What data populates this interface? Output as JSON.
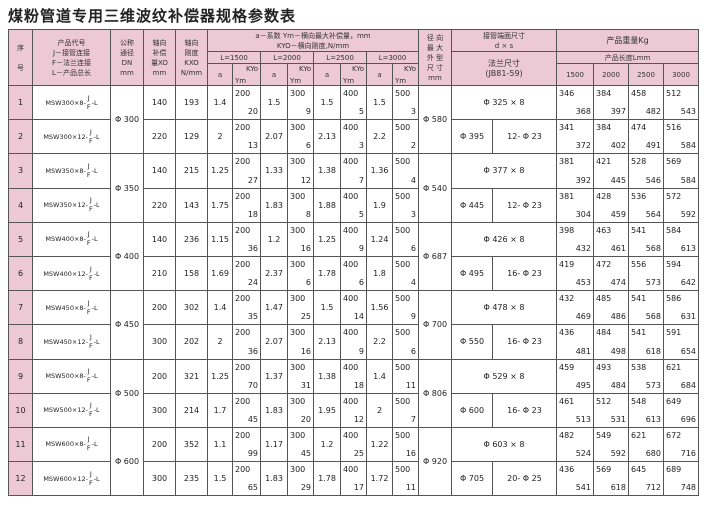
{
  "title": "煤粉管道专用三维波纹补偿器规格参数表",
  "header": {
    "seq": [
      "序",
      "号"
    ],
    "code": [
      "产品代号",
      "J－接管连接",
      "F－法兰连接",
      "L－产品总长"
    ],
    "dn": [
      "公称",
      "通径",
      "DN",
      "mm"
    ],
    "xo": [
      "轴向",
      "补偿",
      "量XO",
      "mm"
    ],
    "kxo": [
      "轴向",
      "刚度",
      "KXO",
      "N/mm"
    ],
    "coef_legend": [
      "a－系数  Ym－横向最大补偿量，mm",
      "KYO－横向刚度,N/mm"
    ],
    "lengths": [
      "L=1500",
      "L=2000",
      "L=2500",
      "L=3000"
    ],
    "a_label": "a",
    "ym_label": "Ym",
    "kyo_label": "KYo",
    "outer": [
      "径 向",
      "最 大",
      "外 型",
      "尺 寸",
      "mm"
    ],
    "pipe_end": [
      "接管端面尺寸",
      "d × s"
    ],
    "flange": [
      "法兰尺寸",
      "(JB81-59)"
    ],
    "weight": "产品重量Kg",
    "product_length": "产品长度Lmm",
    "weight_lengths": [
      "1500",
      "2000",
      "2500",
      "3000"
    ]
  },
  "code_options": [
    "J",
    "F"
  ],
  "code_suffix": "-L",
  "groups": [
    {
      "dn": "Φ 300",
      "outer": "Φ 580"
    },
    {
      "dn": "Φ 350",
      "outer": "Φ 540"
    },
    {
      "dn": "Φ 400",
      "outer": "Φ 687"
    },
    {
      "dn": "Φ 450",
      "outer": "Φ 700"
    },
    {
      "dn": "Φ 500",
      "outer": "Φ 806"
    },
    {
      "dn": "Φ 600",
      "outer": "Φ 920"
    }
  ],
  "rows": [
    {
      "seq": "1",
      "code": "MSW300×8-",
      "xo": "140",
      "kxo": "193",
      "coef": [
        [
          "1.4",
          "200",
          "20"
        ],
        [
          "1.5",
          "300",
          "9"
        ],
        [
          "1.5",
          "400",
          "5"
        ],
        [
          "1.5",
          "500",
          "3"
        ]
      ],
      "pipe": "Φ 325 × 8",
      "weights": [
        [
          "346",
          "368"
        ],
        [
          "384",
          "397"
        ],
        [
          "458",
          "482"
        ],
        [
          "512",
          "543"
        ]
      ]
    },
    {
      "seq": "2",
      "code": "MSW300×12-",
      "xo": "220",
      "kxo": "129",
      "coef": [
        [
          "2",
          "200",
          "13"
        ],
        [
          "2.07",
          "300",
          "6"
        ],
        [
          "2.13",
          "400",
          "3"
        ],
        [
          "2.2",
          "500",
          "2"
        ]
      ],
      "flange": [
        "Φ 395",
        "12- Φ 23"
      ],
      "weights": [
        [
          "341",
          "372"
        ],
        [
          "384",
          "402"
        ],
        [
          "474",
          "491"
        ],
        [
          "516",
          "584"
        ]
      ]
    },
    {
      "seq": "3",
      "code": "MSW350×8-",
      "xo": "140",
      "kxo": "215",
      "coef": [
        [
          "1.25",
          "200",
          "27"
        ],
        [
          "1.33",
          "300",
          "12"
        ],
        [
          "1.38",
          "400",
          "7"
        ],
        [
          "1.36",
          "500",
          "4"
        ]
      ],
      "pipe": "Φ 377 × 8",
      "weights": [
        [
          "381",
          "392"
        ],
        [
          "421",
          "445"
        ],
        [
          "528",
          "546"
        ],
        [
          "569",
          "584"
        ]
      ]
    },
    {
      "seq": "4",
      "code": "MSW350×12-",
      "xo": "220",
      "kxo": "143",
      "coef": [
        [
          "1.75",
          "200",
          "18"
        ],
        [
          "1.83",
          "300",
          "8"
        ],
        [
          "1.88",
          "400",
          "5"
        ],
        [
          "1.9",
          "500",
          "3"
        ]
      ],
      "flange": [
        "Φ 445",
        "12- Φ 23"
      ],
      "weights": [
        [
          "381",
          "304"
        ],
        [
          "428",
          "459"
        ],
        [
          "536",
          "564"
        ],
        [
          "572",
          "592"
        ]
      ]
    },
    {
      "seq": "5",
      "code": "MSW400×8-",
      "xo": "140",
      "kxo": "236",
      "coef": [
        [
          "1.15",
          "200",
          "36"
        ],
        [
          "1.2",
          "300",
          "16"
        ],
        [
          "1.25",
          "400",
          "9"
        ],
        [
          "1.24",
          "500",
          "6"
        ]
      ],
      "pipe": "Φ 426 × 8",
      "weights": [
        [
          "398",
          "432"
        ],
        [
          "463",
          "461"
        ],
        [
          "541",
          "568"
        ],
        [
          "584",
          "613"
        ]
      ]
    },
    {
      "seq": "6",
      "code": "MSW400×12-",
      "xo": "210",
      "kxo": "158",
      "coef": [
        [
          "1.69",
          "200",
          "24"
        ],
        [
          "2.37",
          "300",
          "6"
        ],
        [
          "1.78",
          "400",
          "6"
        ],
        [
          "1.8",
          "500",
          "4"
        ]
      ],
      "flange": [
        "Φ 495",
        "16- Φ 23"
      ],
      "weights": [
        [
          "419",
          "453"
        ],
        [
          "472",
          "474"
        ],
        [
          "556",
          "573"
        ],
        [
          "594",
          "642"
        ]
      ]
    },
    {
      "seq": "7",
      "code": "MSW450×8-",
      "xo": "200",
      "kxo": "302",
      "coef": [
        [
          "1.4",
          "200",
          "35"
        ],
        [
          "1.47",
          "300",
          "25"
        ],
        [
          "1.5",
          "400",
          "14"
        ],
        [
          "1.56",
          "500",
          "9"
        ]
      ],
      "pipe": "Φ 478 × 8",
      "weights": [
        [
          "432",
          "469"
        ],
        [
          "485",
          "486"
        ],
        [
          "541",
          "568"
        ],
        [
          "586",
          "631"
        ]
      ]
    },
    {
      "seq": "8",
      "code": "MSW450×12-",
      "xo": "300",
      "kxo": "202",
      "coef": [
        [
          "2",
          "200",
          "36"
        ],
        [
          "2.07",
          "300",
          "16"
        ],
        [
          "2.13",
          "400",
          "9"
        ],
        [
          "2.2",
          "500",
          "6"
        ]
      ],
      "flange": [
        "Φ 550",
        "16- Φ 23"
      ],
      "weights": [
        [
          "436",
          "481"
        ],
        [
          "484",
          "498"
        ],
        [
          "541",
          "618"
        ],
        [
          "591",
          "654"
        ]
      ]
    },
    {
      "seq": "9",
      "code": "MSW500×8-",
      "xo": "200",
      "kxo": "321",
      "coef": [
        [
          "1.25",
          "200",
          "70"
        ],
        [
          "1.37",
          "300",
          "31"
        ],
        [
          "1.38",
          "400",
          "18"
        ],
        [
          "1.4",
          "500",
          "11"
        ]
      ],
      "pipe": "Φ 529 × 8",
      "weights": [
        [
          "459",
          "495"
        ],
        [
          "493",
          "484"
        ],
        [
          "538",
          "573"
        ],
        [
          "621",
          "684"
        ]
      ]
    },
    {
      "seq": "10",
      "code": "MSW500×12-",
      "xo": "300",
      "kxo": "214",
      "coef": [
        [
          "1.7",
          "200",
          "45"
        ],
        [
          "1.83",
          "300",
          "20"
        ],
        [
          "1.95",
          "400",
          "12"
        ],
        [
          "2",
          "500",
          "7"
        ]
      ],
      "flange": [
        "Φ 600",
        "16- Φ 23"
      ],
      "weights": [
        [
          "461",
          "513"
        ],
        [
          "512",
          "531"
        ],
        [
          "548",
          "613"
        ],
        [
          "649",
          "696"
        ]
      ]
    },
    {
      "seq": "11",
      "code": "MSW600×8-",
      "xo": "200",
      "kxo": "352",
      "coef": [
        [
          "1.1",
          "200",
          "99"
        ],
        [
          "1.17",
          "300",
          "45"
        ],
        [
          "1.2",
          "400",
          "25"
        ],
        [
          "1.22",
          "500",
          "16"
        ]
      ],
      "pipe": "Φ 603 × 8",
      "weights": [
        [
          "482",
          "524"
        ],
        [
          "549",
          "592"
        ],
        [
          "621",
          "680"
        ],
        [
          "672",
          "716"
        ]
      ]
    },
    {
      "seq": "12",
      "code": "MSW600×12-",
      "xo": "300",
      "kxo": "235",
      "coef": [
        [
          "1.5",
          "200",
          "65"
        ],
        [
          "1.83",
          "300",
          "29"
        ],
        [
          "1.78",
          "400",
          "17"
        ],
        [
          "1.72",
          "500",
          "11"
        ]
      ],
      "flange": [
        "Φ 705",
        "20- Φ 25"
      ],
      "weights": [
        [
          "436",
          "541"
        ],
        [
          "569",
          "618"
        ],
        [
          "645",
          "712"
        ],
        [
          "689",
          "748"
        ]
      ]
    }
  ]
}
